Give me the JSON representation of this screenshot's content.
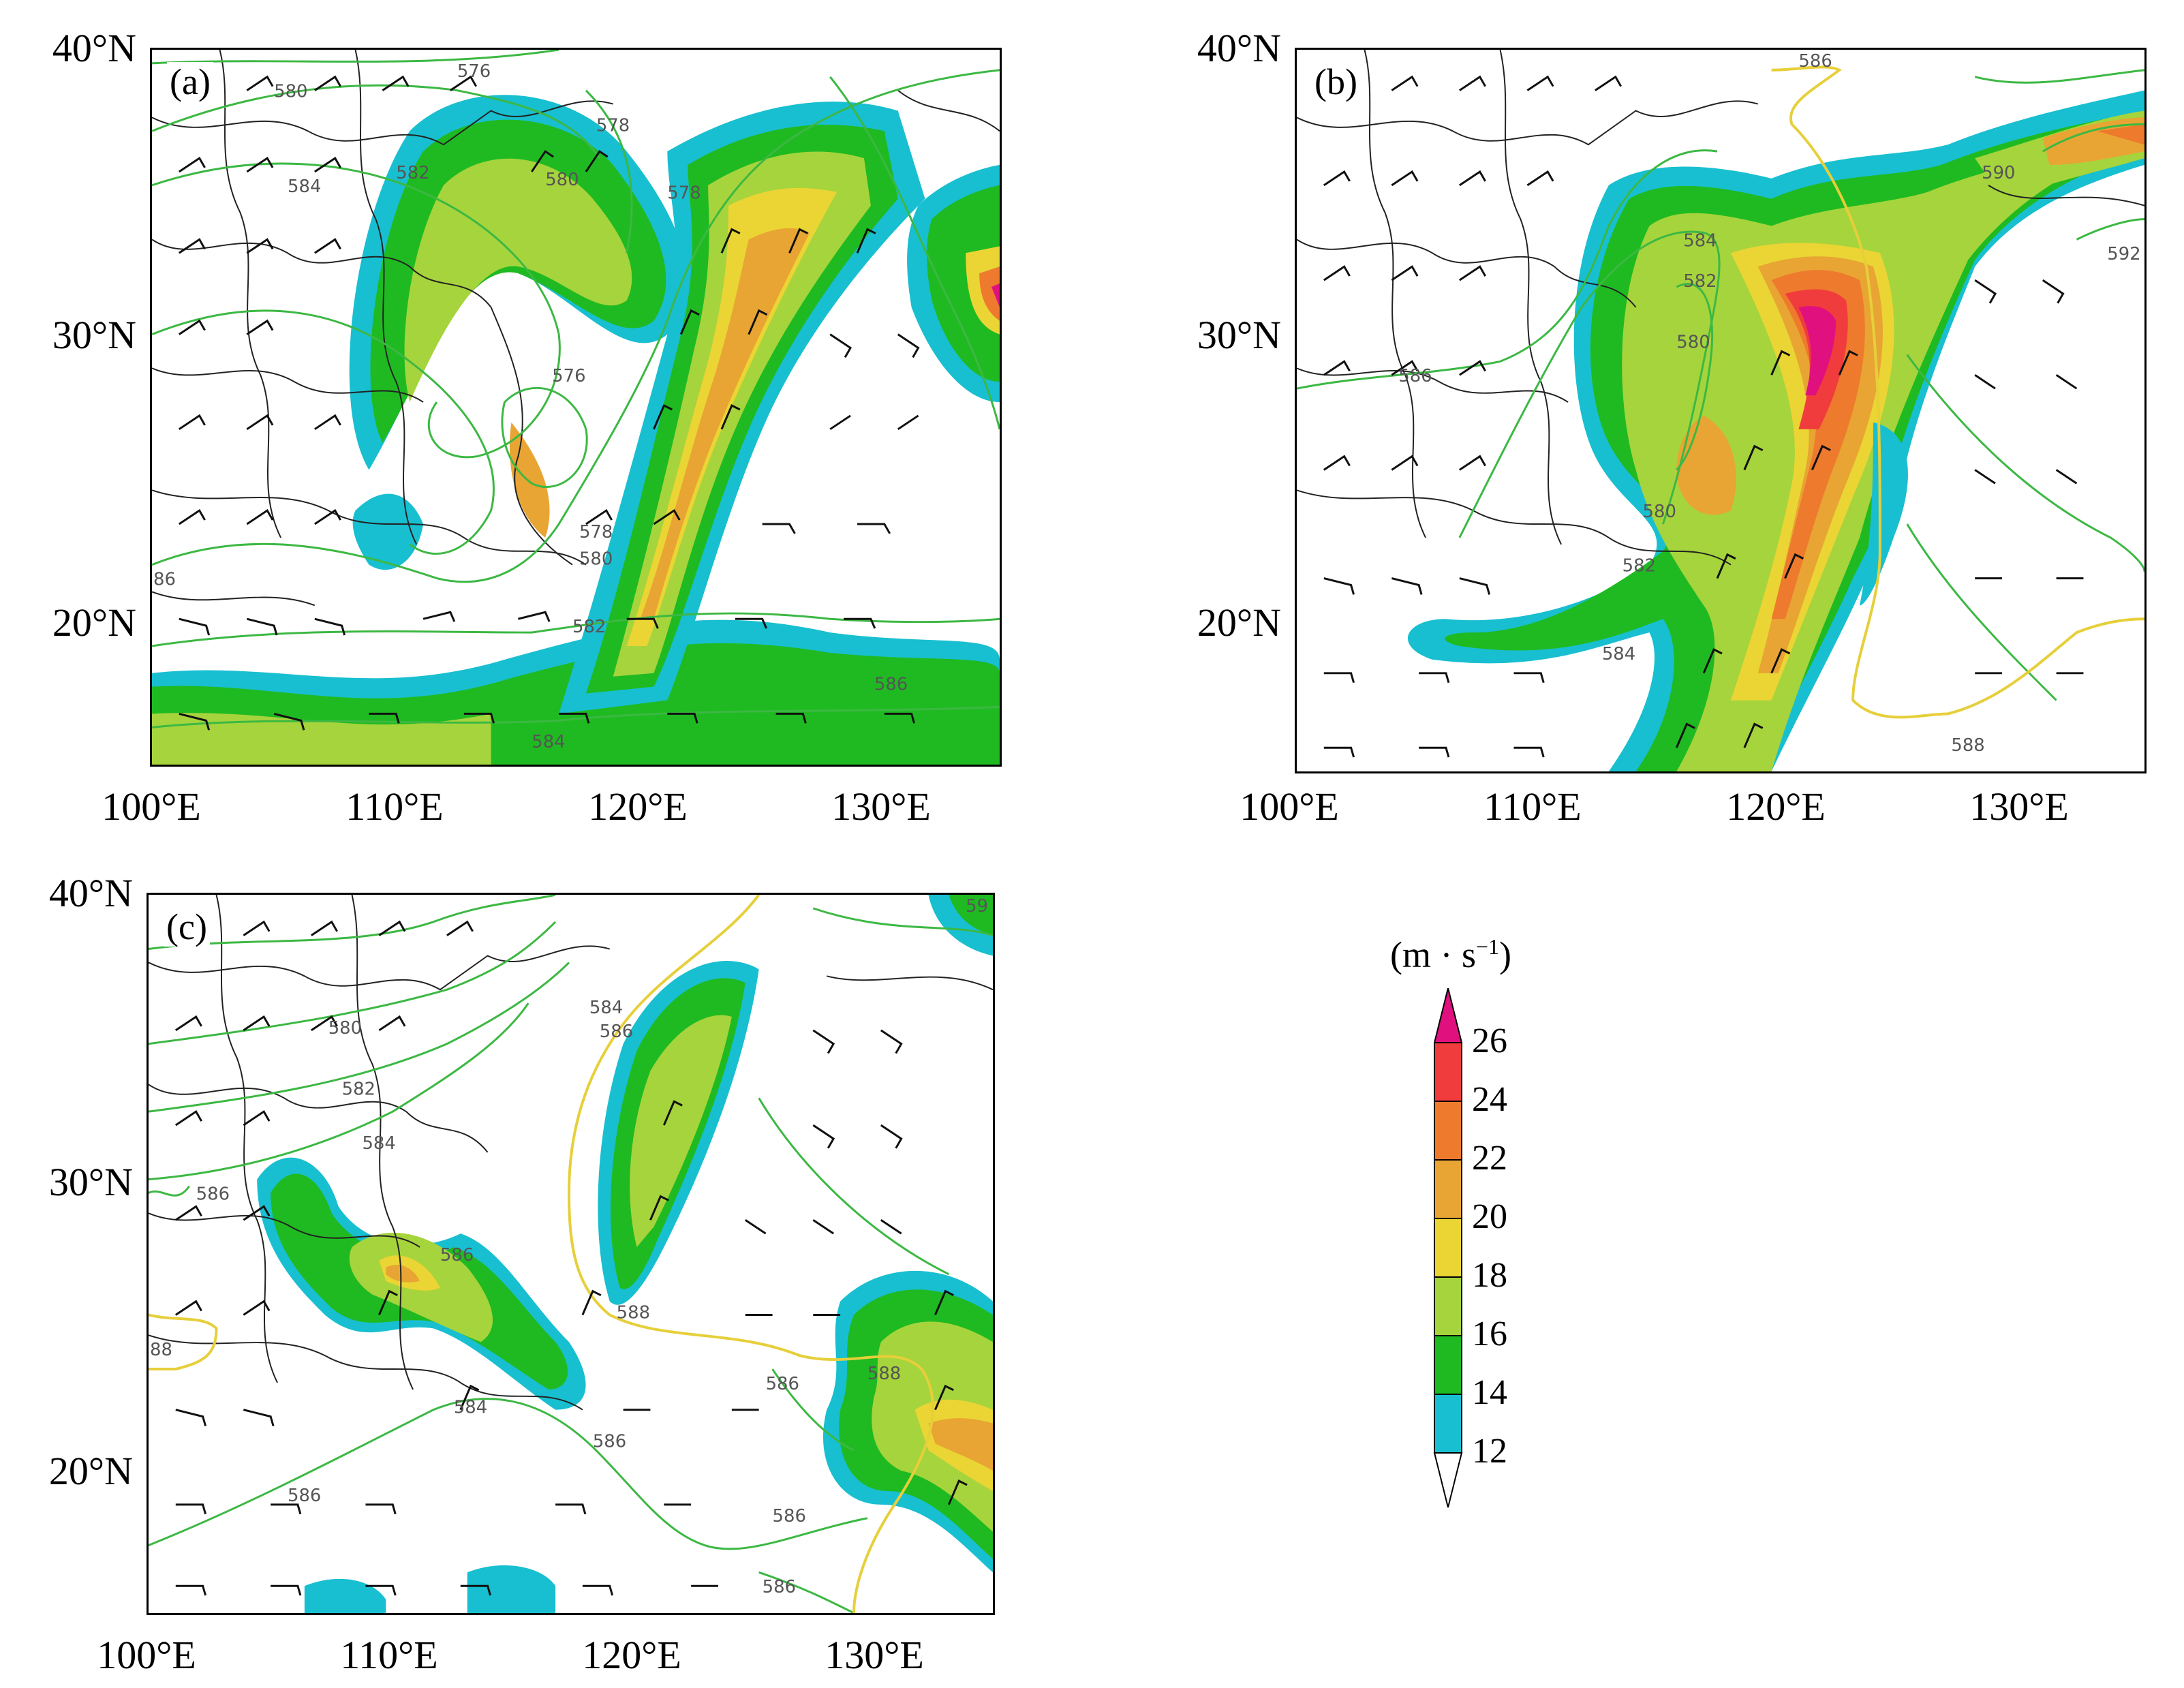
{
  "panels": [
    {
      "id": "a",
      "label": "(a)",
      "y_ticks": [
        "40°N",
        "30°N",
        "20°N"
      ],
      "x_ticks": [
        "100°E",
        "110°E",
        "120°E",
        "130°E"
      ],
      "contour_labels": [
        "576",
        "580",
        "584",
        "582",
        "578",
        "580",
        "578",
        "576",
        "578",
        "580",
        "582",
        "586",
        "584",
        "86"
      ]
    },
    {
      "id": "b",
      "label": "(b)",
      "y_ticks": [
        "40°N",
        "30°N",
        "20°N"
      ],
      "x_ticks": [
        "100°E",
        "110°E",
        "120°E",
        "130°E"
      ],
      "contour_labels": [
        "586",
        "590",
        "592",
        "584",
        "582",
        "580",
        "586",
        "580",
        "582",
        "584",
        "588"
      ]
    },
    {
      "id": "c",
      "label": "(c)",
      "y_ticks": [
        "40°N",
        "30°N",
        "20°N"
      ],
      "x_ticks": [
        "100°E",
        "110°E",
        "120°E",
        "130°E"
      ],
      "contour_labels": [
        "59",
        "584",
        "586",
        "580",
        "582",
        "584",
        "586",
        "586",
        "588",
        "88",
        "584",
        "586",
        "586",
        "588",
        "586",
        "586",
        "586"
      ]
    }
  ],
  "colorbar": {
    "title": "(m · s",
    "title_sup": "−1",
    "title_close": ")",
    "ticks": [
      "26",
      "24",
      "22",
      "20",
      "18",
      "16",
      "14",
      "12"
    ],
    "colors": [
      "#e0117f",
      "#f03c3c",
      "#ee7a2e",
      "#e8a533",
      "#ead534",
      "#a6d43c",
      "#1fba21",
      "#18bfd0",
      "#ffffff"
    ]
  },
  "palette": {
    "cyan": "#18bfd0",
    "green": "#1fba21",
    "lightgreen": "#a6d43c",
    "yellow": "#ead534",
    "orange": "#e8a533",
    "darkorange": "#ee7a2e",
    "red": "#f03c3c",
    "magenta": "#e0117f",
    "contour_green": "#3cb843",
    "contour_yellow": "#e6cf3a"
  }
}
